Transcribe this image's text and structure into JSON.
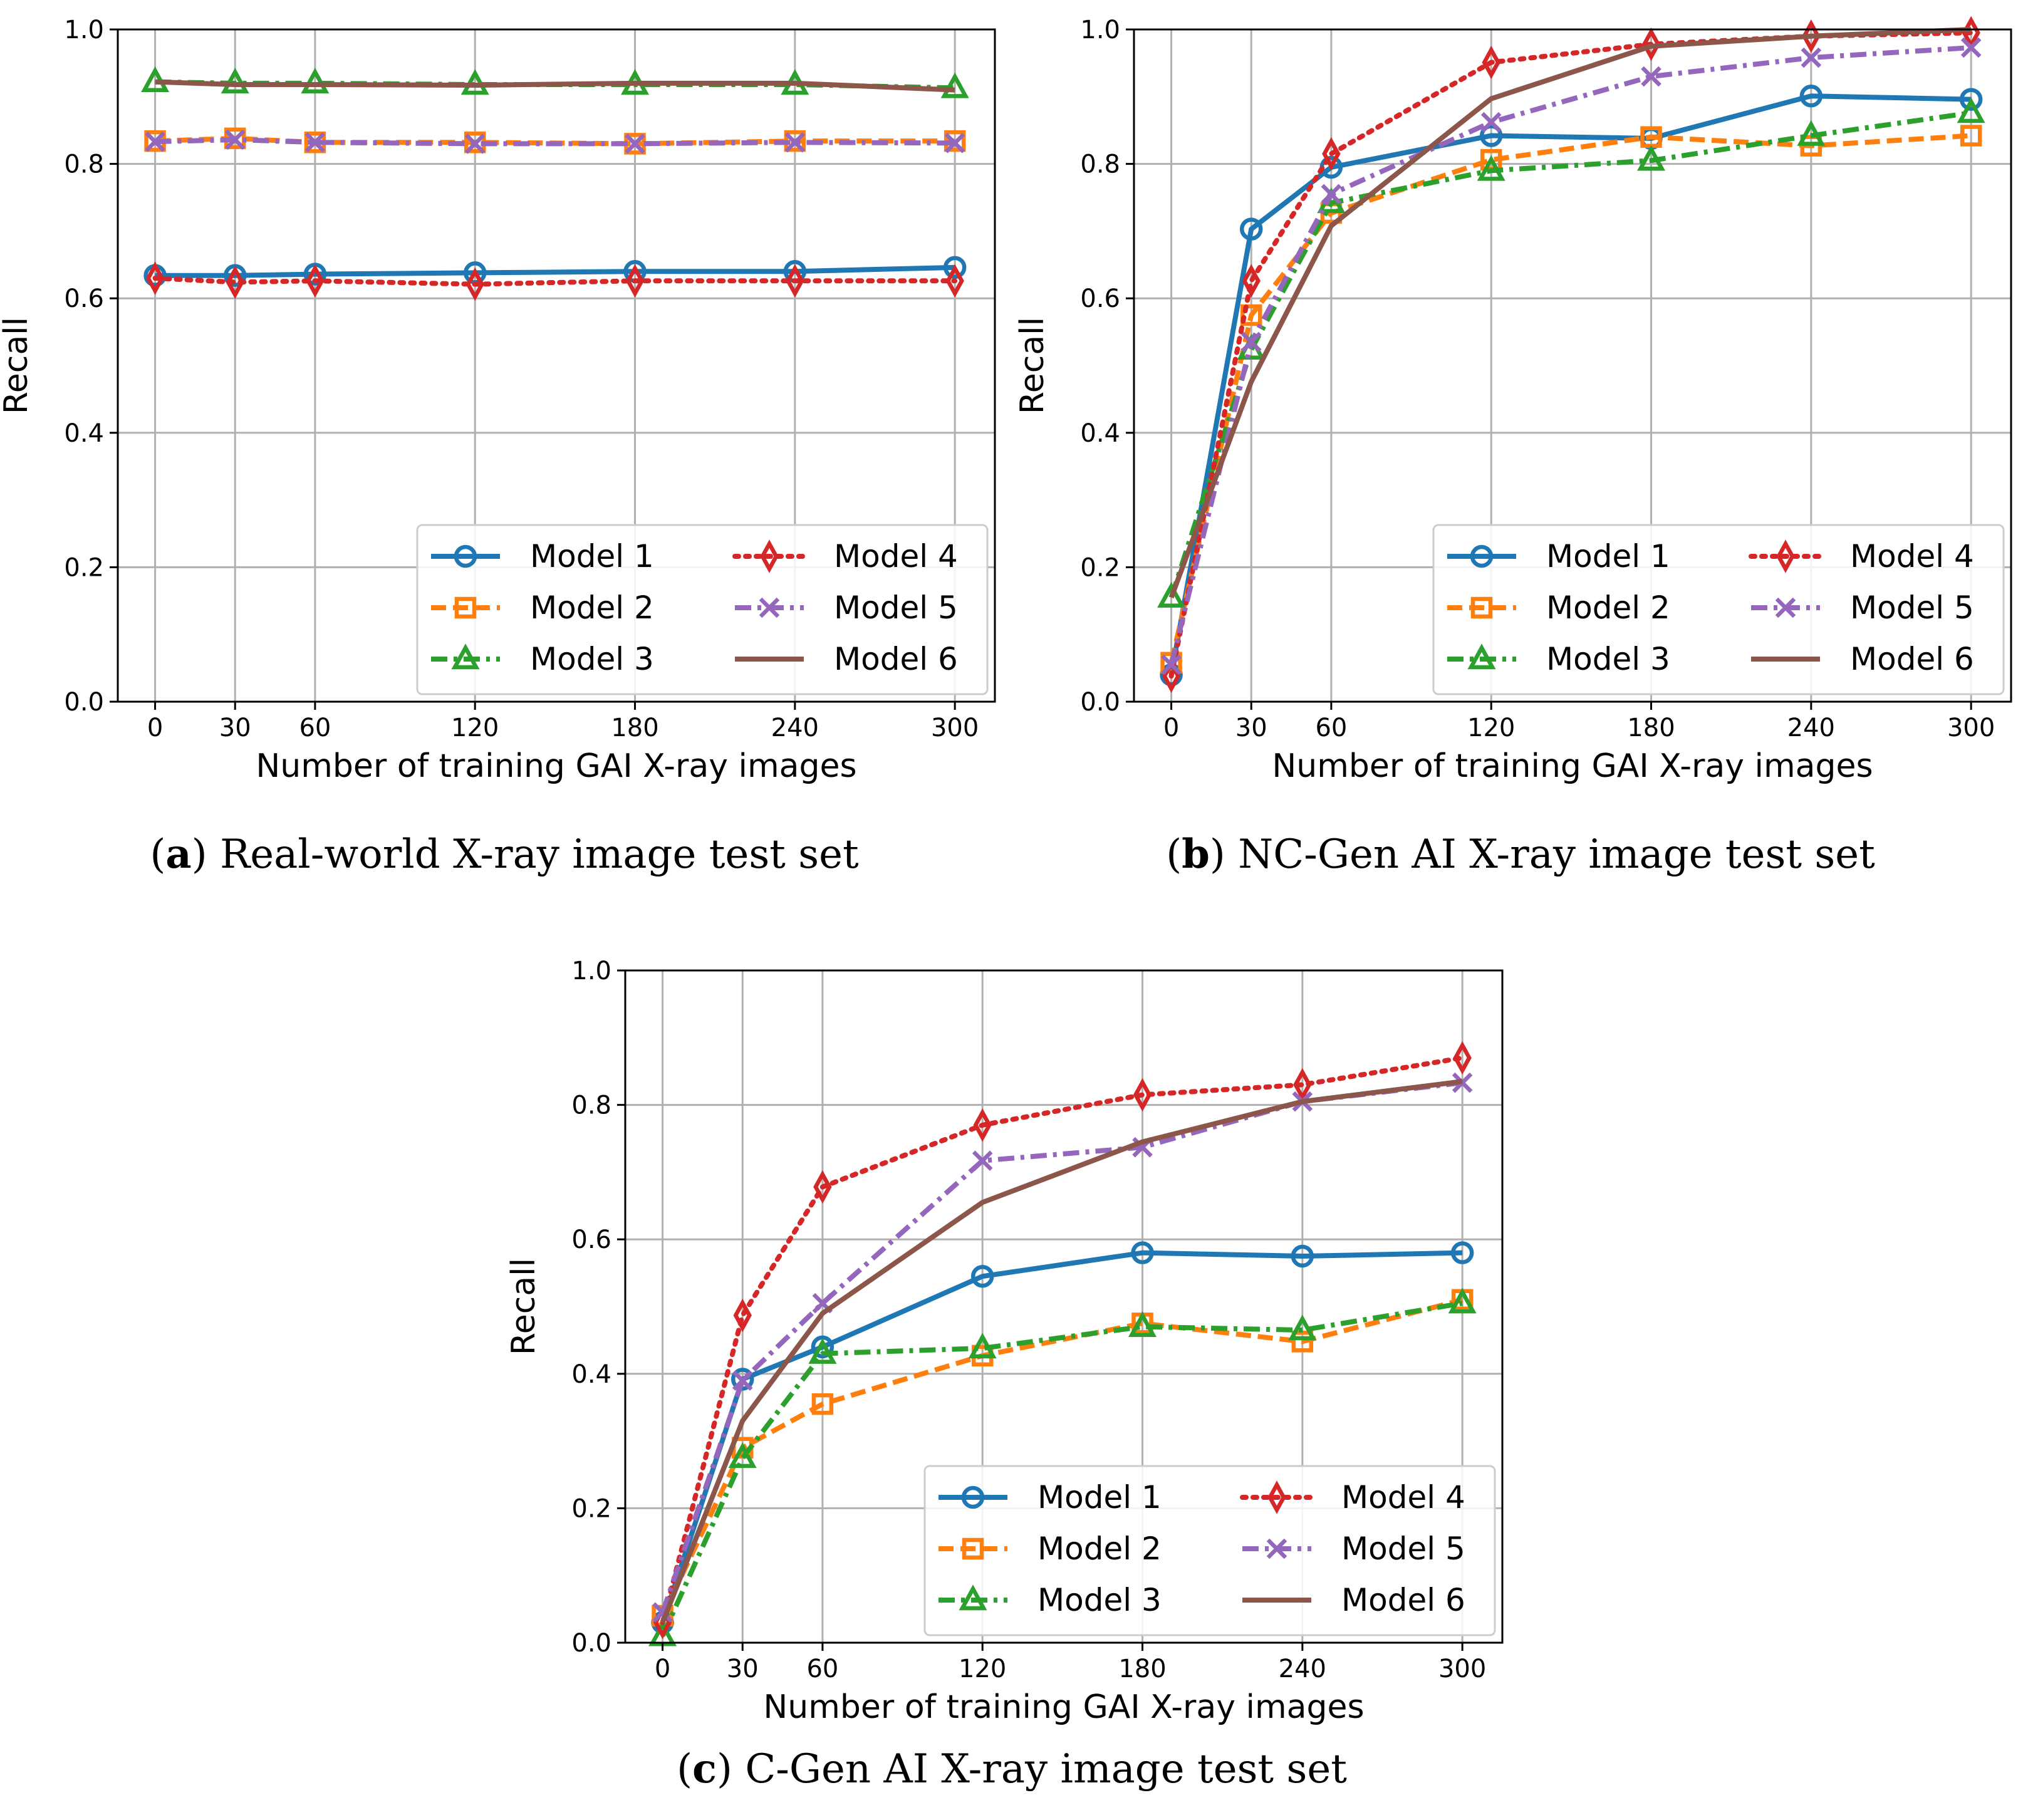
{
  "series_styles": [
    {
      "name": "Model 1",
      "color": "#1f77b4",
      "dash": "solid",
      "marker": "circle"
    },
    {
      "name": "Model 2",
      "color": "#ff7f0e",
      "dash": "dashed",
      "marker": "square"
    },
    {
      "name": "Model 3",
      "color": "#2ca02c",
      "dash": "dashdot",
      "marker": "triangle"
    },
    {
      "name": "Model 4",
      "color": "#d62728",
      "dash": "dotted",
      "marker": "diamond"
    },
    {
      "name": "Model 5",
      "color": "#9467bd",
      "dash": "dashdot",
      "marker": "x"
    },
    {
      "name": "Model 6",
      "color": "#8c564b",
      "dash": "solid",
      "marker": "none"
    }
  ],
  "chart_data": [
    {
      "type": "line",
      "caption_letter": "a",
      "caption_text": "Real-world X-ray image test set",
      "xlabel": "Number of training GAI X-ray images",
      "ylabel": "Recall",
      "x": [
        0,
        30,
        60,
        120,
        180,
        240,
        300
      ],
      "xticks": [
        "0",
        "30",
        "60",
        "120",
        "180",
        "240",
        "300"
      ],
      "yticks": [
        "0.0",
        "0.2",
        "0.4",
        "0.6",
        "0.8",
        "1.0"
      ],
      "xlim": [
        -14,
        315
      ],
      "ylim": [
        0,
        1
      ],
      "grid": true,
      "legend_position": "bottom-right",
      "series": [
        {
          "name": "Model 1",
          "values": [
            0.634,
            0.634,
            0.636,
            0.638,
            0.64,
            0.64,
            0.646
          ]
        },
        {
          "name": "Model 2",
          "values": [
            0.834,
            0.838,
            0.832,
            0.832,
            0.83,
            0.834,
            0.834
          ]
        },
        {
          "name": "Model 3",
          "values": [
            0.922,
            0.92,
            0.92,
            0.918,
            0.918,
            0.918,
            0.913
          ]
        },
        {
          "name": "Model 4",
          "values": [
            0.63,
            0.624,
            0.626,
            0.621,
            0.626,
            0.626,
            0.626
          ]
        },
        {
          "name": "Model 5",
          "values": [
            0.833,
            0.836,
            0.832,
            0.83,
            0.83,
            0.832,
            0.831
          ]
        },
        {
          "name": "Model 6",
          "values": [
            0.922,
            0.918,
            0.918,
            0.917,
            0.92,
            0.92,
            0.91
          ]
        }
      ]
    },
    {
      "type": "line",
      "caption_letter": "b",
      "caption_text": "NC-Gen AI X-ray image test set",
      "xlabel": "Number of training GAI X-ray images",
      "ylabel": "Recall",
      "x": [
        0,
        30,
        60,
        120,
        180,
        240,
        300
      ],
      "xticks": [
        "0",
        "30",
        "60",
        "120",
        "180",
        "240",
        "300"
      ],
      "yticks": [
        "0.0",
        "0.2",
        "0.4",
        "0.6",
        "0.8",
        "1.0"
      ],
      "xlim": [
        -14,
        315
      ],
      "ylim": [
        0,
        1
      ],
      "grid": true,
      "legend_position": "bottom-right",
      "series": [
        {
          "name": "Model 1",
          "values": [
            0.04,
            0.703,
            0.795,
            0.842,
            0.838,
            0.901,
            0.896
          ]
        },
        {
          "name": "Model 2",
          "values": [
            0.058,
            0.575,
            0.727,
            0.806,
            0.84,
            0.827,
            0.842
          ]
        },
        {
          "name": "Model 3",
          "values": [
            0.155,
            0.524,
            0.742,
            0.79,
            0.805,
            0.842,
            0.876
          ]
        },
        {
          "name": "Model 4",
          "values": [
            0.038,
            0.626,
            0.815,
            0.951,
            0.978,
            0.99,
            0.995
          ]
        },
        {
          "name": "Model 5",
          "values": [
            0.055,
            0.535,
            0.755,
            0.862,
            0.93,
            0.958,
            0.973
          ]
        },
        {
          "name": "Model 6",
          "values": [
            0.155,
            0.476,
            0.708,
            0.897,
            0.975,
            0.99,
            1.0
          ]
        }
      ]
    },
    {
      "type": "line",
      "caption_letter": "c",
      "caption_text": "C-Gen AI X-ray image test set",
      "xlabel": "Number of training GAI X-ray images",
      "ylabel": "Recall",
      "x": [
        0,
        30,
        60,
        120,
        180,
        240,
        300
      ],
      "xticks": [
        "0",
        "30",
        "60",
        "120",
        "180",
        "240",
        "300"
      ],
      "yticks": [
        "0.0",
        "0.2",
        "0.4",
        "0.6",
        "0.8",
        "1.0"
      ],
      "xlim": [
        -14,
        315
      ],
      "ylim": [
        0,
        1
      ],
      "grid": true,
      "legend_position": "bottom-right",
      "series": [
        {
          "name": "Model 1",
          "values": [
            0.03,
            0.392,
            0.44,
            0.545,
            0.58,
            0.575,
            0.58
          ]
        },
        {
          "name": "Model 2",
          "values": [
            0.04,
            0.29,
            0.355,
            0.427,
            0.475,
            0.448,
            0.51
          ]
        },
        {
          "name": "Model 3",
          "values": [
            0.01,
            0.275,
            0.43,
            0.438,
            0.47,
            0.465,
            0.505
          ]
        },
        {
          "name": "Model 4",
          "values": [
            0.03,
            0.487,
            0.678,
            0.77,
            0.815,
            0.83,
            0.87
          ]
        },
        {
          "name": "Model 5",
          "values": [
            0.045,
            0.39,
            0.505,
            0.717,
            0.737,
            0.805,
            0.833
          ]
        },
        {
          "name": "Model 6",
          "values": [
            0.03,
            0.33,
            0.49,
            0.655,
            0.745,
            0.805,
            0.835
          ]
        }
      ]
    }
  ]
}
